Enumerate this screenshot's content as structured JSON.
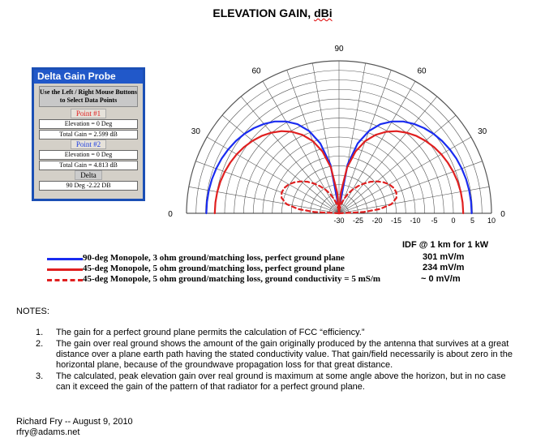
{
  "title_text": "ELEVATION GAIN,",
  "title_unit": "dBi",
  "chart_data": {
    "type": "polar",
    "title": "ELEVATION GAIN, dBi",
    "angle_labels": [
      "90",
      "60",
      "60",
      "30",
      "30",
      "0",
      "0"
    ],
    "radial_tick_labels": [
      "-30",
      "-25",
      "-20",
      "-15",
      "-10",
      "-5",
      "0",
      "5",
      "10"
    ],
    "radial_range_dB": [
      -30,
      10
    ],
    "grid": true,
    "series": [
      {
        "name": "90-deg Monopole, 3 ohm ground/matching loss, perfect ground plane",
        "color": "#1a2cf0",
        "style": "solid",
        "elevation_deg": [
          0,
          5,
          10,
          15,
          20,
          25,
          30,
          35,
          40,
          45,
          50,
          55,
          60,
          65,
          70,
          75,
          80,
          85,
          90
        ],
        "gain_dBi": [
          4.8,
          4.77,
          4.67,
          4.51,
          4.28,
          3.96,
          3.55,
          3.04,
          2.4,
          1.6,
          0.62,
          -0.6,
          -2.2,
          -4.2,
          -7.0,
          -11.0,
          -17.0,
          -28.0,
          -30.0
        ]
      },
      {
        "name": "45-deg Monopole, 5 ohm ground/matching loss, perfect ground plane",
        "color": "#e02020",
        "style": "solid",
        "elevation_deg": [
          0,
          5,
          10,
          15,
          20,
          25,
          30,
          35,
          40,
          45,
          50,
          55,
          60,
          65,
          70,
          75,
          80,
          85,
          90
        ],
        "gain_dBi": [
          2.6,
          2.55,
          2.42,
          2.2,
          1.89,
          1.49,
          0.98,
          0.36,
          -0.4,
          -1.3,
          -2.4,
          -3.7,
          -5.3,
          -7.3,
          -9.8,
          -13.2,
          -17.8,
          -24.5,
          -30.0
        ]
      },
      {
        "name": "45-deg Monopole, 5 ohm ground/matching loss, ground conductivity = 5 mS/m",
        "color": "#e02020",
        "style": "dashed",
        "elevation_deg": [
          0,
          3,
          6,
          10,
          15,
          20,
          25,
          30,
          35,
          40,
          45,
          50,
          55,
          60,
          65,
          70,
          75,
          80,
          85,
          90
        ],
        "gain_dBi": [
          -30.0,
          -23.5,
          -19.2,
          -16.0,
          -14.4,
          -14.0,
          -14.2,
          -14.8,
          -15.8,
          -17.0,
          -18.3,
          -19.8,
          -21.3,
          -22.8,
          -24.3,
          -25.8,
          -27.1,
          -28.4,
          -29.6,
          -30.0
        ]
      }
    ]
  },
  "probe": {
    "title": "Delta Gain Probe",
    "instructions": "Use the Left / Right Mouse Buttons to Select Data Points",
    "point1_label": "Point #1",
    "point1_elevation": "Elevation = 0 Deg",
    "point1_gain": "Total Gain = 2.599 dB",
    "point2_label": "Point #2",
    "point2_elevation": "Elevation = 0 Deg",
    "point2_gain": "Total Gain = 4.813 dB",
    "delta_label": "Delta",
    "delta_value": "90 Deg -2.22 DB"
  },
  "legend": {
    "items": [
      {
        "text": "90-deg Monopole, 3 ohm ground/matching loss, perfect ground plane",
        "color": "#1a2cf0",
        "style": "solid"
      },
      {
        "text": "45-deg Monopole, 5 ohm ground/matching loss, perfect ground plane",
        "color": "#e02020",
        "style": "solid"
      },
      {
        "text": "45-deg Monopole, 5 ohm ground/matching loss, ground conductivity = 5 mS/m",
        "color": "#e02020",
        "style": "dashed"
      }
    ],
    "idf_header": "IDF @ 1 km for 1 kW",
    "idf_values": [
      "301 mV/m",
      "234 mV/m",
      "~ 0 mV/m"
    ]
  },
  "notes": {
    "heading": "NOTES:",
    "items": [
      {
        "num": "1.",
        "text": "The gain for a perfect ground plane permits the calculation of FCC “efficiency.”"
      },
      {
        "num": "2.",
        "text": "The gain over real ground shows the amount of the gain originally produced by the antenna that survives at a great distance over a plane earth path having the stated conductivity value.  That gain/field necessarily is about zero in the horizontal plane, because of the groundwave propagation loss for that great distance."
      },
      {
        "num": "3.",
        "text": "The calculated, peak elevation gain over real ground is maximum at some angle above the horizon, but in no case can it exceed the gain of the pattern of that radiator for a perfect ground plane."
      }
    ]
  },
  "signature": {
    "author_line": "Richard Fry -- August 9, 2010",
    "email": "rfry@adams.net"
  }
}
